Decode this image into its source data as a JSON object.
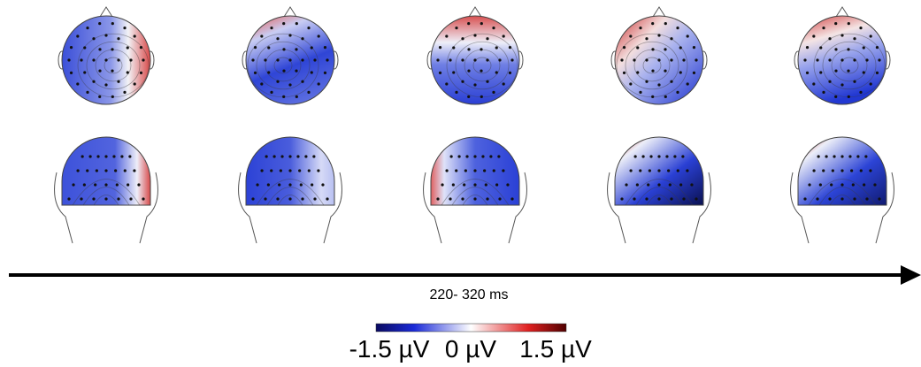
{
  "timeline": {
    "label": "220- 320 ms"
  },
  "colorbar": {
    "labels": [
      "-1.5 µV",
      "0 µV",
      "1.5 µV"
    ]
  }
}
